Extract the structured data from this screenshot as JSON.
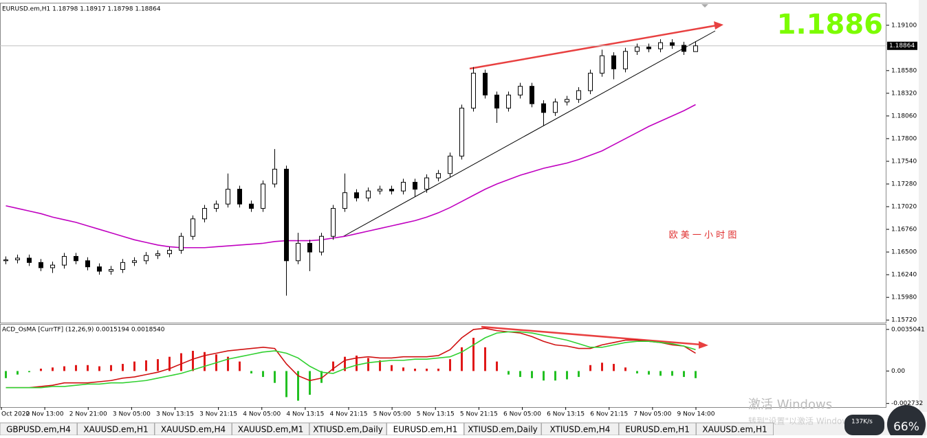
{
  "window": {
    "tabs": [
      "GBPUSD.em,H4",
      "XAUUSD.em,H1",
      "XAUUSD.em,H4",
      "XAUUSD.em,M1",
      "XTIUSD.em,Daily",
      "EURUSD.em,H1",
      "XTIUSD.em,Daily",
      "XTIUSD.em,H4",
      "EURUSD.em,H1",
      "XAUUSD.em,H1"
    ],
    "active_tab": 5,
    "watermark": [
      "激活 Windows",
      "转到\"设置\"以激活 Windows。"
    ],
    "speed": "137K/s",
    "gauge": "66%"
  },
  "chart_data": [
    {
      "type": "candlestick",
      "title": "EURUSD.em,H1  1.18798 1.18917 1.18798 1.18864",
      "big_label": "1.1886",
      "annotation": "欧 美 一 小 时 图",
      "x_labels": [
        "Oct 2020",
        "2 Nov 13:00",
        "2 Nov 21:00",
        "3 Nov 05:00",
        "3 Nov 13:15",
        "3 Nov 21:15",
        "4 Nov 05:00",
        "4 Nov 13:15",
        "4 Nov 21:15",
        "5 Nov 05:00",
        "5 Nov 13:15",
        "5 Nov 21:15",
        "6 Nov 05:00",
        "6 Nov 13:15",
        "6 Nov 21:15",
        "7 Nov 05:00",
        "9 Nov 14:00"
      ],
      "open": [
        1.164,
        1.1641,
        1.1643,
        1.1638,
        1.1632,
        1.1635,
        1.1645,
        1.164,
        1.1633,
        1.1628,
        1.163,
        1.1638,
        1.164,
        1.1646,
        1.1648,
        1.1652,
        1.1668,
        1.1688,
        1.17,
        1.1705,
        1.1722,
        1.1705,
        1.17,
        1.1728,
        1.1745,
        1.164,
        1.166,
        1.165,
        1.1668,
        1.17,
        1.1718,
        1.1712,
        1.172,
        1.1722,
        1.172,
        1.173,
        1.1722,
        1.1735,
        1.174,
        1.176,
        1.1815,
        1.1855,
        1.183,
        1.1815,
        1.183,
        1.184,
        1.182,
        1.181,
        1.1822,
        1.1825,
        1.1835,
        1.1855,
        1.1875,
        1.186,
        1.188,
        1.1885,
        1.1883,
        1.189,
        1.1887,
        1.18798
      ],
      "high": [
        1.1645,
        1.1647,
        1.1647,
        1.1642,
        1.1639,
        1.1649,
        1.1649,
        1.1644,
        1.1637,
        1.1634,
        1.1642,
        1.1644,
        1.165,
        1.1652,
        1.1656,
        1.1672,
        1.1692,
        1.1704,
        1.1709,
        1.174,
        1.1726,
        1.1709,
        1.1732,
        1.1768,
        1.1749,
        1.1672,
        1.1664,
        1.1672,
        1.1704,
        1.174,
        1.1722,
        1.1724,
        1.1726,
        1.1726,
        1.1734,
        1.1734,
        1.1739,
        1.1744,
        1.1764,
        1.1819,
        1.1862,
        1.1859,
        1.1834,
        1.1834,
        1.1844,
        1.1844,
        1.1824,
        1.1826,
        1.1829,
        1.1839,
        1.1859,
        1.1882,
        1.1879,
        1.1884,
        1.1889,
        1.1889,
        1.1894,
        1.1894,
        1.1891,
        1.18917
      ],
      "low": [
        1.1636,
        1.1637,
        1.1634,
        1.1628,
        1.1626,
        1.1631,
        1.1636,
        1.1629,
        1.1624,
        1.1624,
        1.1626,
        1.1634,
        1.1636,
        1.1642,
        1.1644,
        1.1648,
        1.1664,
        1.1684,
        1.1696,
        1.1701,
        1.1701,
        1.1696,
        1.1696,
        1.1724,
        1.16,
        1.1636,
        1.1628,
        1.1646,
        1.1664,
        1.1696,
        1.1708,
        1.1708,
        1.1716,
        1.1716,
        1.1716,
        1.1713,
        1.1718,
        1.1731,
        1.1736,
        1.1756,
        1.1811,
        1.1826,
        1.1798,
        1.1811,
        1.1826,
        1.1816,
        1.1795,
        1.1806,
        1.1818,
        1.1821,
        1.1831,
        1.1851,
        1.1848,
        1.1856,
        1.1876,
        1.1879,
        1.1879,
        1.1883,
        1.1876,
        1.18798
      ],
      "close": [
        1.1641,
        1.1643,
        1.1638,
        1.1632,
        1.1635,
        1.1645,
        1.164,
        1.1633,
        1.1628,
        1.163,
        1.1638,
        1.164,
        1.1646,
        1.1648,
        1.1652,
        1.1668,
        1.1688,
        1.17,
        1.1705,
        1.1722,
        1.1705,
        1.17,
        1.1728,
        1.1745,
        1.164,
        1.166,
        1.165,
        1.1668,
        1.17,
        1.1718,
        1.1712,
        1.172,
        1.1722,
        1.172,
        1.173,
        1.1722,
        1.1735,
        1.174,
        1.176,
        1.1815,
        1.1855,
        1.183,
        1.1815,
        1.183,
        1.184,
        1.182,
        1.181,
        1.1822,
        1.1825,
        1.1835,
        1.1855,
        1.1875,
        1.186,
        1.188,
        1.1885,
        1.1883,
        1.189,
        1.1887,
        1.188,
        1.18864
      ],
      "ma": {
        "color": "#c000c0",
        "values": [
          1.1703,
          1.17,
          1.1697,
          1.1694,
          1.169,
          1.1687,
          1.1684,
          1.168,
          1.1676,
          1.1672,
          1.1668,
          1.1664,
          1.1661,
          1.1658,
          1.1656,
          1.1655,
          1.1655,
          1.1655,
          1.1656,
          1.1657,
          1.1658,
          1.1659,
          1.166,
          1.1662,
          1.1663,
          1.1663,
          1.1663,
          1.1664,
          1.1666,
          1.1668,
          1.1671,
          1.1674,
          1.1677,
          1.168,
          1.1683,
          1.1686,
          1.169,
          1.1695,
          1.1701,
          1.1708,
          1.1715,
          1.1722,
          1.1728,
          1.1733,
          1.1738,
          1.1742,
          1.1746,
          1.1749,
          1.1752,
          1.1756,
          1.1761,
          1.1766,
          1.1773,
          1.178,
          1.1787,
          1.1794,
          1.18,
          1.1806,
          1.1812,
          1.1819
        ]
      },
      "last_price": {
        "value": 1.18864,
        "label": "1.18864"
      },
      "ylim": [
        1.1569,
        1.1935
      ],
      "yticks": [
        {
          "value": 1.191,
          "label": "1.19100"
        },
        {
          "value": 1.1858,
          "label": "1.18580"
        },
        {
          "value": 1.1832,
          "label": "1.18320"
        },
        {
          "value": 1.1806,
          "label": "1.18060"
        },
        {
          "value": 1.178,
          "label": "1.17800"
        },
        {
          "value": 1.1754,
          "label": "1.17540"
        },
        {
          "value": 1.1728,
          "label": "1.17280"
        },
        {
          "value": 1.1702,
          "label": "1.17020"
        },
        {
          "value": 1.1676,
          "label": "1.16760"
        },
        {
          "value": 1.165,
          "label": "1.16500"
        },
        {
          "value": 1.1624,
          "label": "1.16240"
        },
        {
          "value": 1.1598,
          "label": "1.15980"
        },
        {
          "value": 1.1572,
          "label": "1.15720"
        }
      ]
    },
    {
      "type": "macd",
      "title": "ACD_OsMA [CurrTF] (12,26,9) 0.0015194 0.0018540",
      "ylim": [
        -0.00304,
        0.0039
      ],
      "yticks": [
        {
          "value": 0.0035041,
          "label": "0.0035041"
        },
        {
          "value": 0,
          "label": "0.00"
        },
        {
          "value": -0.002732,
          "label": "-0.002732"
        }
      ],
      "histogram": {
        "color": "#e01818",
        "negative_color": "#22c022",
        "values": [
          -0.0006,
          -0.0003,
          -0.0001,
          0.0002,
          0.0003,
          0.0004,
          0.0005,
          0.0005,
          0.0004,
          0.0005,
          0.0006,
          0.0008,
          0.0009,
          0.001,
          0.0012,
          0.0015,
          0.0017,
          0.0016,
          0.0014,
          0.0012,
          0.0008,
          -0.0002,
          -0.0005,
          -0.001,
          -0.0022,
          -0.0025,
          -0.002,
          -0.001,
          0.0008,
          0.0012,
          0.0013,
          0.0011,
          0.0009,
          0.0005,
          0.0003,
          0.0002,
          0.0002,
          0.0002,
          0.001,
          0.002,
          0.0028,
          0.002,
          0.0008,
          -0.0003,
          -0.0005,
          -0.0006,
          -0.0008,
          -0.0008,
          -0.0007,
          -0.0005,
          0.0005,
          0.0007,
          0.0006,
          0.0003,
          -0.0002,
          -0.0003,
          -0.0004,
          -0.0004,
          -0.0005,
          -0.0006
        ]
      },
      "lines": [
        {
          "color": "#d01010",
          "values": [
            -0.0014,
            -0.0014,
            -0.0014,
            -0.0013,
            -0.0012,
            -0.001,
            -0.001,
            -0.001,
            -0.0009,
            -0.0008,
            -0.0006,
            -0.0005,
            -0.0003,
            -0.0001,
            0.0002,
            0.0006,
            0.001,
            0.0013,
            0.0015,
            0.0017,
            0.0018,
            0.0019,
            0.002,
            0.0019,
            0.0006,
            -0.0004,
            -0.0008,
            -0.0006,
            0.0002,
            0.0009,
            0.0011,
            0.0012,
            0.0011,
            0.0011,
            0.0012,
            0.0012,
            0.0012,
            0.0013,
            0.0018,
            0.0028,
            0.0035,
            0.0036,
            0.0034,
            0.0033,
            0.0032,
            0.0029,
            0.0025,
            0.0022,
            0.0021,
            0.0019,
            0.0019,
            0.0022,
            0.0024,
            0.0026,
            0.0026,
            0.0025,
            0.0024,
            0.0022,
            0.0021,
            0.0015
          ]
        },
        {
          "color": "#30d030",
          "values": [
            -0.0014,
            -0.0014,
            -0.0014,
            -0.0014,
            -0.0013,
            -0.0013,
            -0.0012,
            -0.0011,
            -0.0011,
            -0.001,
            -0.001,
            -0.0009,
            -0.0008,
            -0.0006,
            -0.0004,
            -0.0002,
            0.0001,
            0.0004,
            0.0007,
            0.001,
            0.0012,
            0.0014,
            0.0016,
            0.0017,
            0.0015,
            0.0011,
            0.0004,
            -0.0001,
            -0.0002,
            0.0002,
            0.0005,
            0.0007,
            0.0008,
            0.0009,
            0.0009,
            0.001,
            0.001,
            0.0011,
            0.0012,
            0.0016,
            0.0022,
            0.0028,
            0.0032,
            0.0033,
            0.0033,
            0.0032,
            0.003,
            0.0028,
            0.0026,
            0.0023,
            0.002,
            0.002,
            0.0022,
            0.0024,
            0.0025,
            0.0025,
            0.0024,
            0.0023,
            0.0021,
            0.0018
          ]
        }
      ]
    }
  ]
}
